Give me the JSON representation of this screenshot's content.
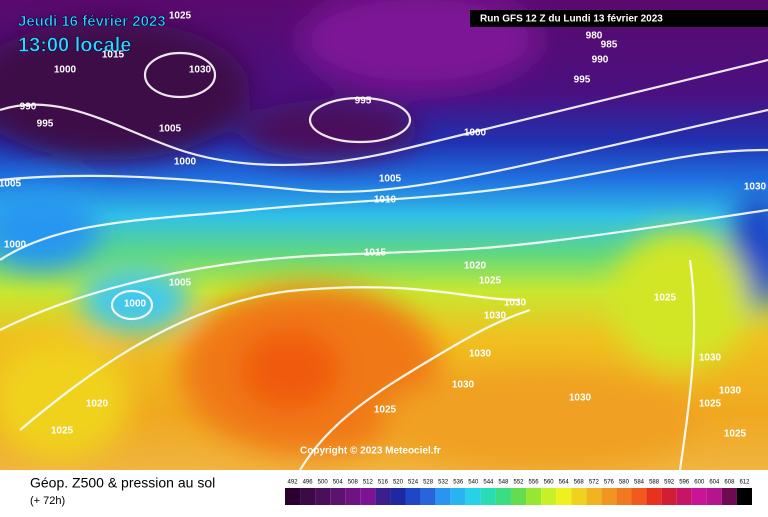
{
  "header": {
    "date": "Jeudi 16 février 2023",
    "time": "13:00 locale",
    "run": "Run GFS 12 Z du Lundi 13 février 2023"
  },
  "copyright": "Copyright © 2023 Meteociel.fr",
  "footer": {
    "title": "Géop. Z500 & pression au sol",
    "lead": "(+ 72h)"
  },
  "scale": {
    "values": [
      492,
      496,
      500,
      504,
      508,
      512,
      516,
      520,
      524,
      528,
      532,
      536,
      540,
      544,
      548,
      552,
      556,
      560,
      564,
      568,
      572,
      576,
      580,
      584,
      588,
      592,
      596,
      600,
      604,
      608,
      612
    ],
    "colors": [
      "#2a0030",
      "#3c0a46",
      "#4b0f5a",
      "#5a146e",
      "#6e1482",
      "#7d1496",
      "#3c1e8c",
      "#1e28a0",
      "#1e46c8",
      "#2864dc",
      "#2896f0",
      "#28b4f0",
      "#28d2e6",
      "#28dcb4",
      "#3cdc82",
      "#64dc50",
      "#96e632",
      "#c8f028",
      "#f0f01e",
      "#f0d21e",
      "#f0b41e",
      "#f0961e",
      "#f0781e",
      "#f05a1e",
      "#e6321e",
      "#d21e32",
      "#c81464",
      "#c81496",
      "#b4148c",
      "#6e0a50",
      "#000000"
    ]
  },
  "isobar_labels": [
    1025,
    1000,
    1030,
    1015,
    990,
    995,
    1005,
    1000,
    995,
    980,
    985,
    990,
    995,
    1000,
    1005,
    1010,
    1005,
    1030,
    1000,
    1005,
    1000,
    1015,
    1020,
    1025,
    1030,
    1030,
    1025,
    1030,
    1030,
    1030,
    1025,
    1020,
    1025,
    1030,
    1030,
    1025,
    1025
  ]
}
